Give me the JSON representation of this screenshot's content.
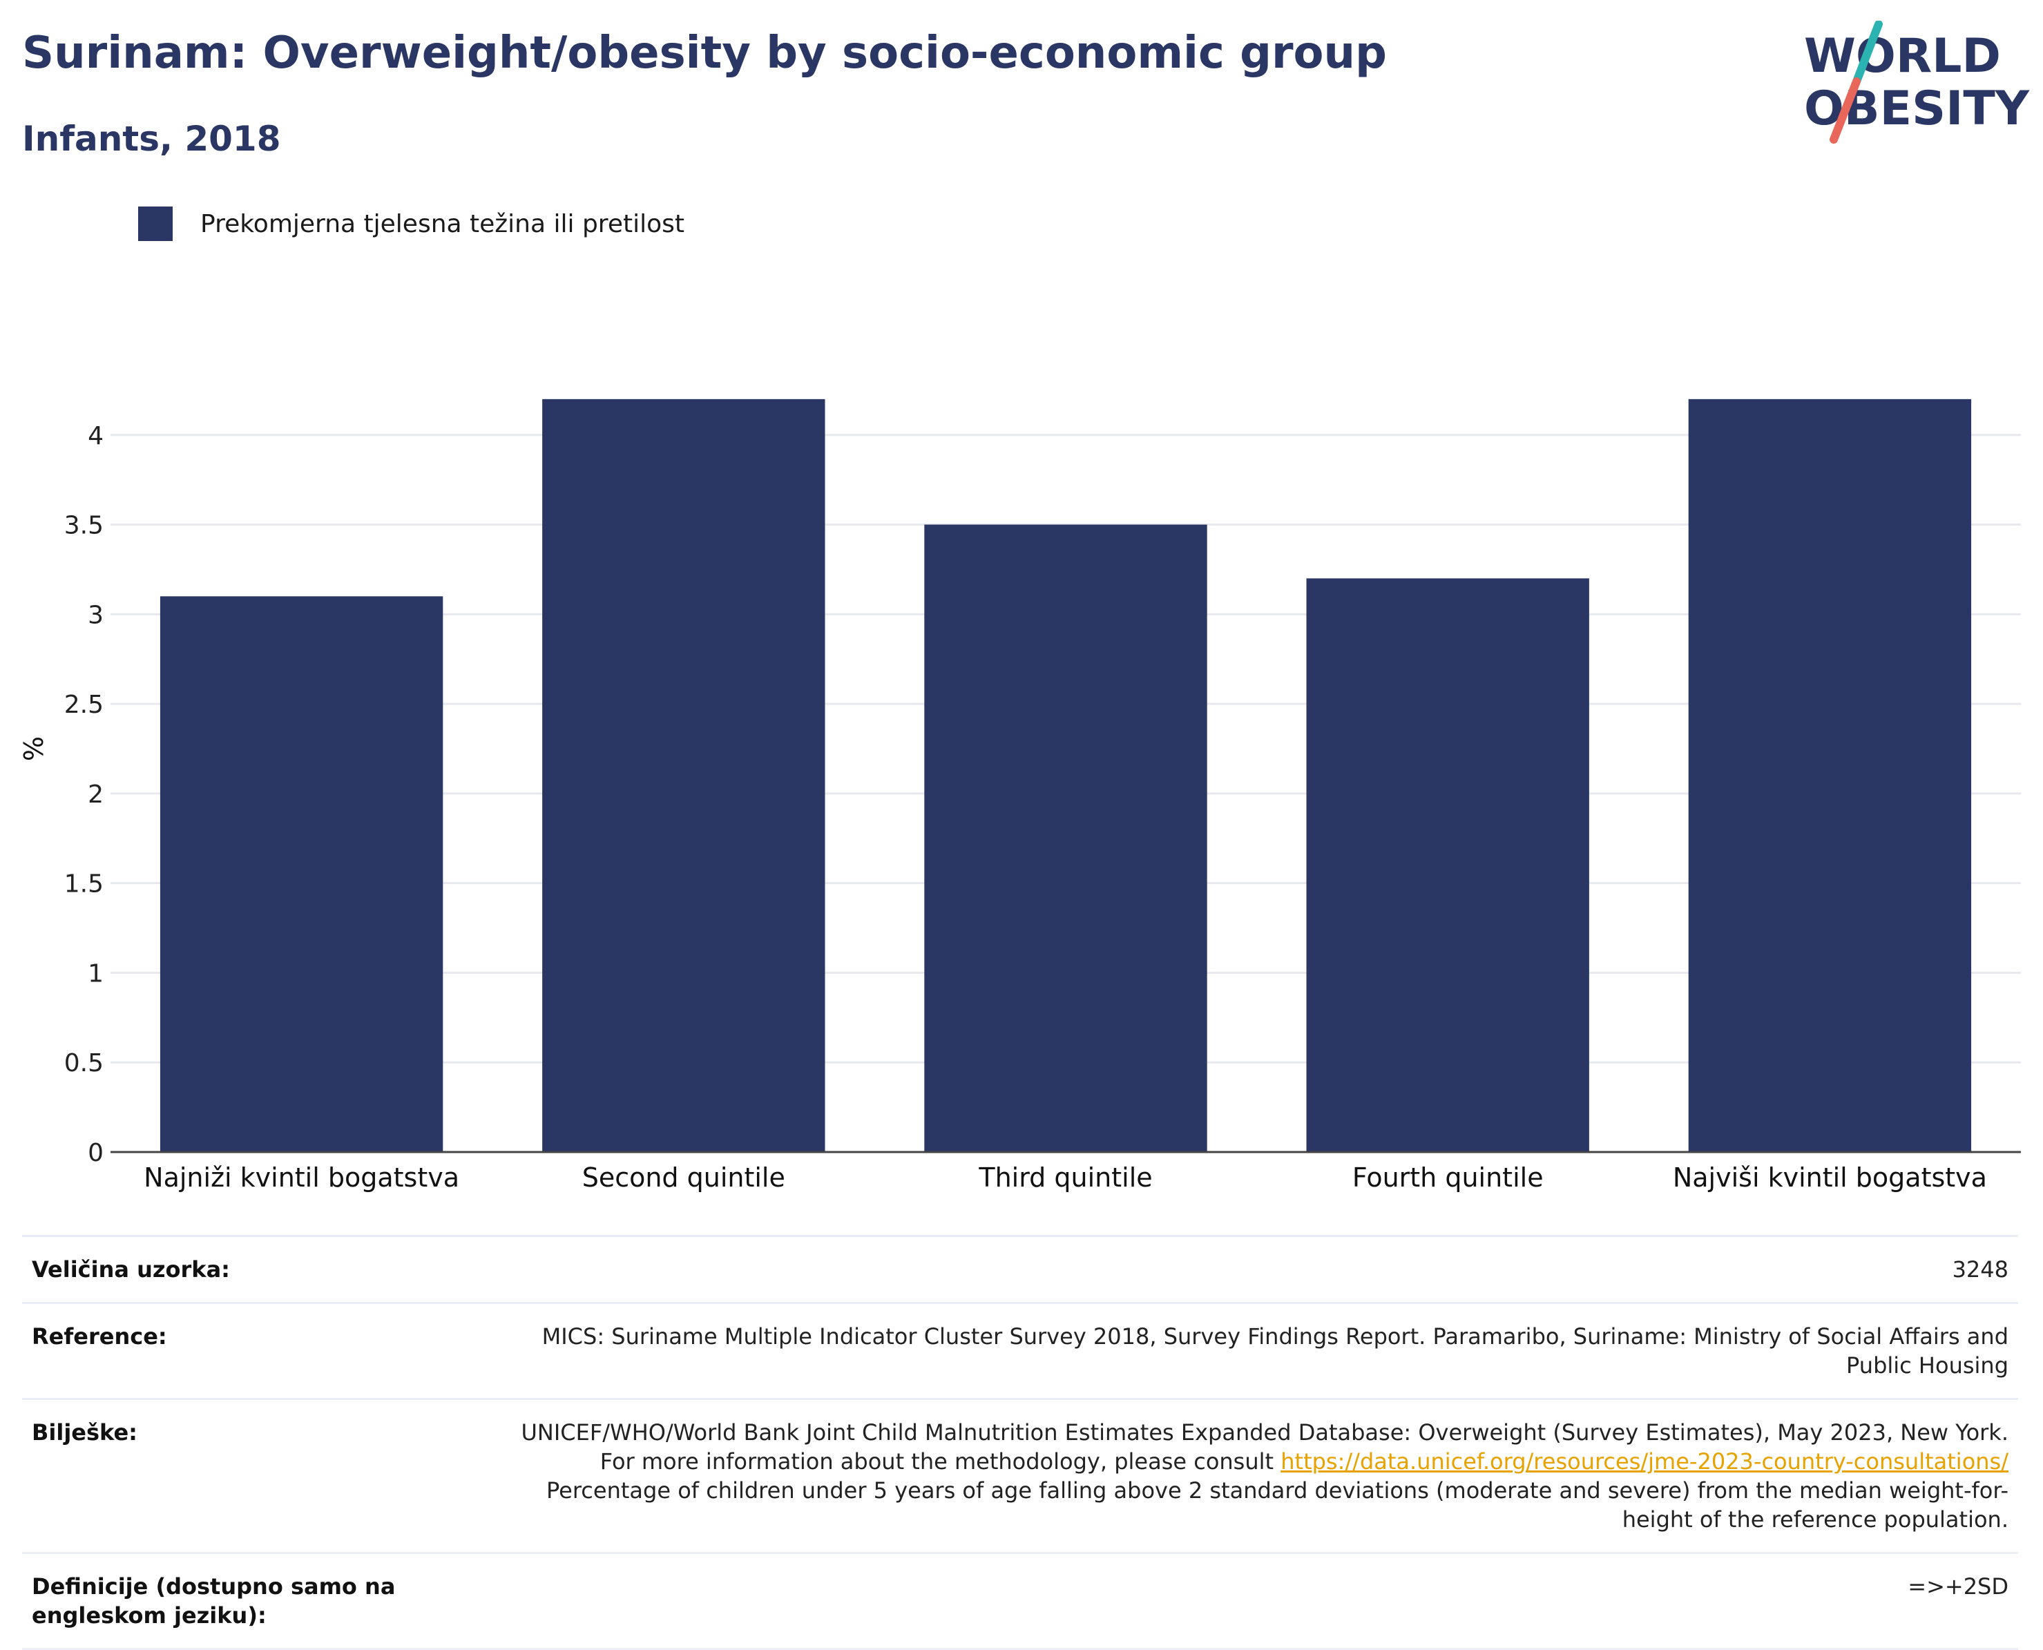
{
  "header": {
    "title": "Surinam: Overweight/obesity by socio-economic group",
    "subtitle": "Infants, 2018"
  },
  "logo": {
    "line1": "WORLD",
    "line2": "OBESITY",
    "colors": {
      "text": "#2a3663",
      "slash_top": "#2ab3b1",
      "slash_bottom": "#e8665a"
    }
  },
  "legend": {
    "label": "Prekomjerna tjelesna težina ili pretilost",
    "color": "#2a3663"
  },
  "chart_data": {
    "type": "bar",
    "categories": [
      "Najniži kvintil bogatstva",
      "Second quintile",
      "Third quintile",
      "Fourth quintile",
      "Najviši kvintil bogatstva"
    ],
    "series": [
      {
        "name": "Prekomjerna tjelesna težina ili pretilost",
        "values": [
          3.1,
          4.2,
          3.5,
          3.2,
          4.2
        ],
        "color": "#2a3663"
      }
    ],
    "ylabel": "%",
    "xlabel": "",
    "ylim": [
      0,
      4.5
    ],
    "yticks": [
      0,
      0.5,
      1,
      1.5,
      2,
      2.5,
      3,
      3.5,
      4
    ],
    "ytick_labels": [
      "0",
      "0.5",
      "1",
      "1.5",
      "2",
      "2.5",
      "3",
      "3.5",
      "4"
    ],
    "grid": true,
    "legend_position": "top-left"
  },
  "info": {
    "sample_size": {
      "label": "Veličina uzorka:",
      "value": "3248"
    },
    "reference": {
      "label": "Reference:",
      "value": "MICS: Suriname Multiple Indicator Cluster Survey 2018, Survey Findings Report. Paramaribo, Suriname: Ministry of Social Affairs and Public Housing"
    },
    "notes": {
      "label": "Bilješke:",
      "text_before_link": "UNICEF/WHO/World Bank Joint Child Malnutrition Estimates Expanded Database: Overweight (Survey Estimates), May 2023, New York. For more information about the methodology, please consult ",
      "link": "https://data.unicef.org/resources/jme-2023-country-consultations/",
      "text_after_link": " Percentage of children under 5 years of age falling above 2 standard deviations (moderate and severe) from the median weight-for-height of the reference population."
    },
    "definitions": {
      "label": "Definicije (dostupno samo na engleskom jeziku):",
      "value": "=>+2SD"
    }
  }
}
